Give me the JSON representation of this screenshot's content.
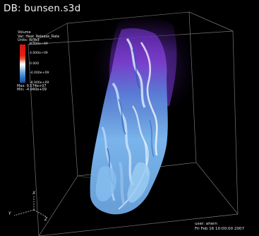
{
  "database": {
    "label": "DB: bunsen.s3d"
  },
  "legend": {
    "plot_type": "Volume",
    "variable": "Var: Heat_Release_Rate",
    "units": "Units: W/m3",
    "ticks": [
      "8.000e+09",
      "4.000e+09",
      "0.000",
      "-4.000e+09",
      "-8.000e+09"
    ],
    "max": "Max: 9.574e+07",
    "min": "Min: -4.940e+09",
    "colors": [
      "#d31712",
      "#ffffff",
      "#1a4f9e"
    ]
  },
  "axes": {
    "x": "X",
    "y": "Y",
    "z": "Z"
  },
  "user_info": {
    "user": "user: ahern",
    "date": "Fri Feb 16 10:00:00 2007"
  }
}
